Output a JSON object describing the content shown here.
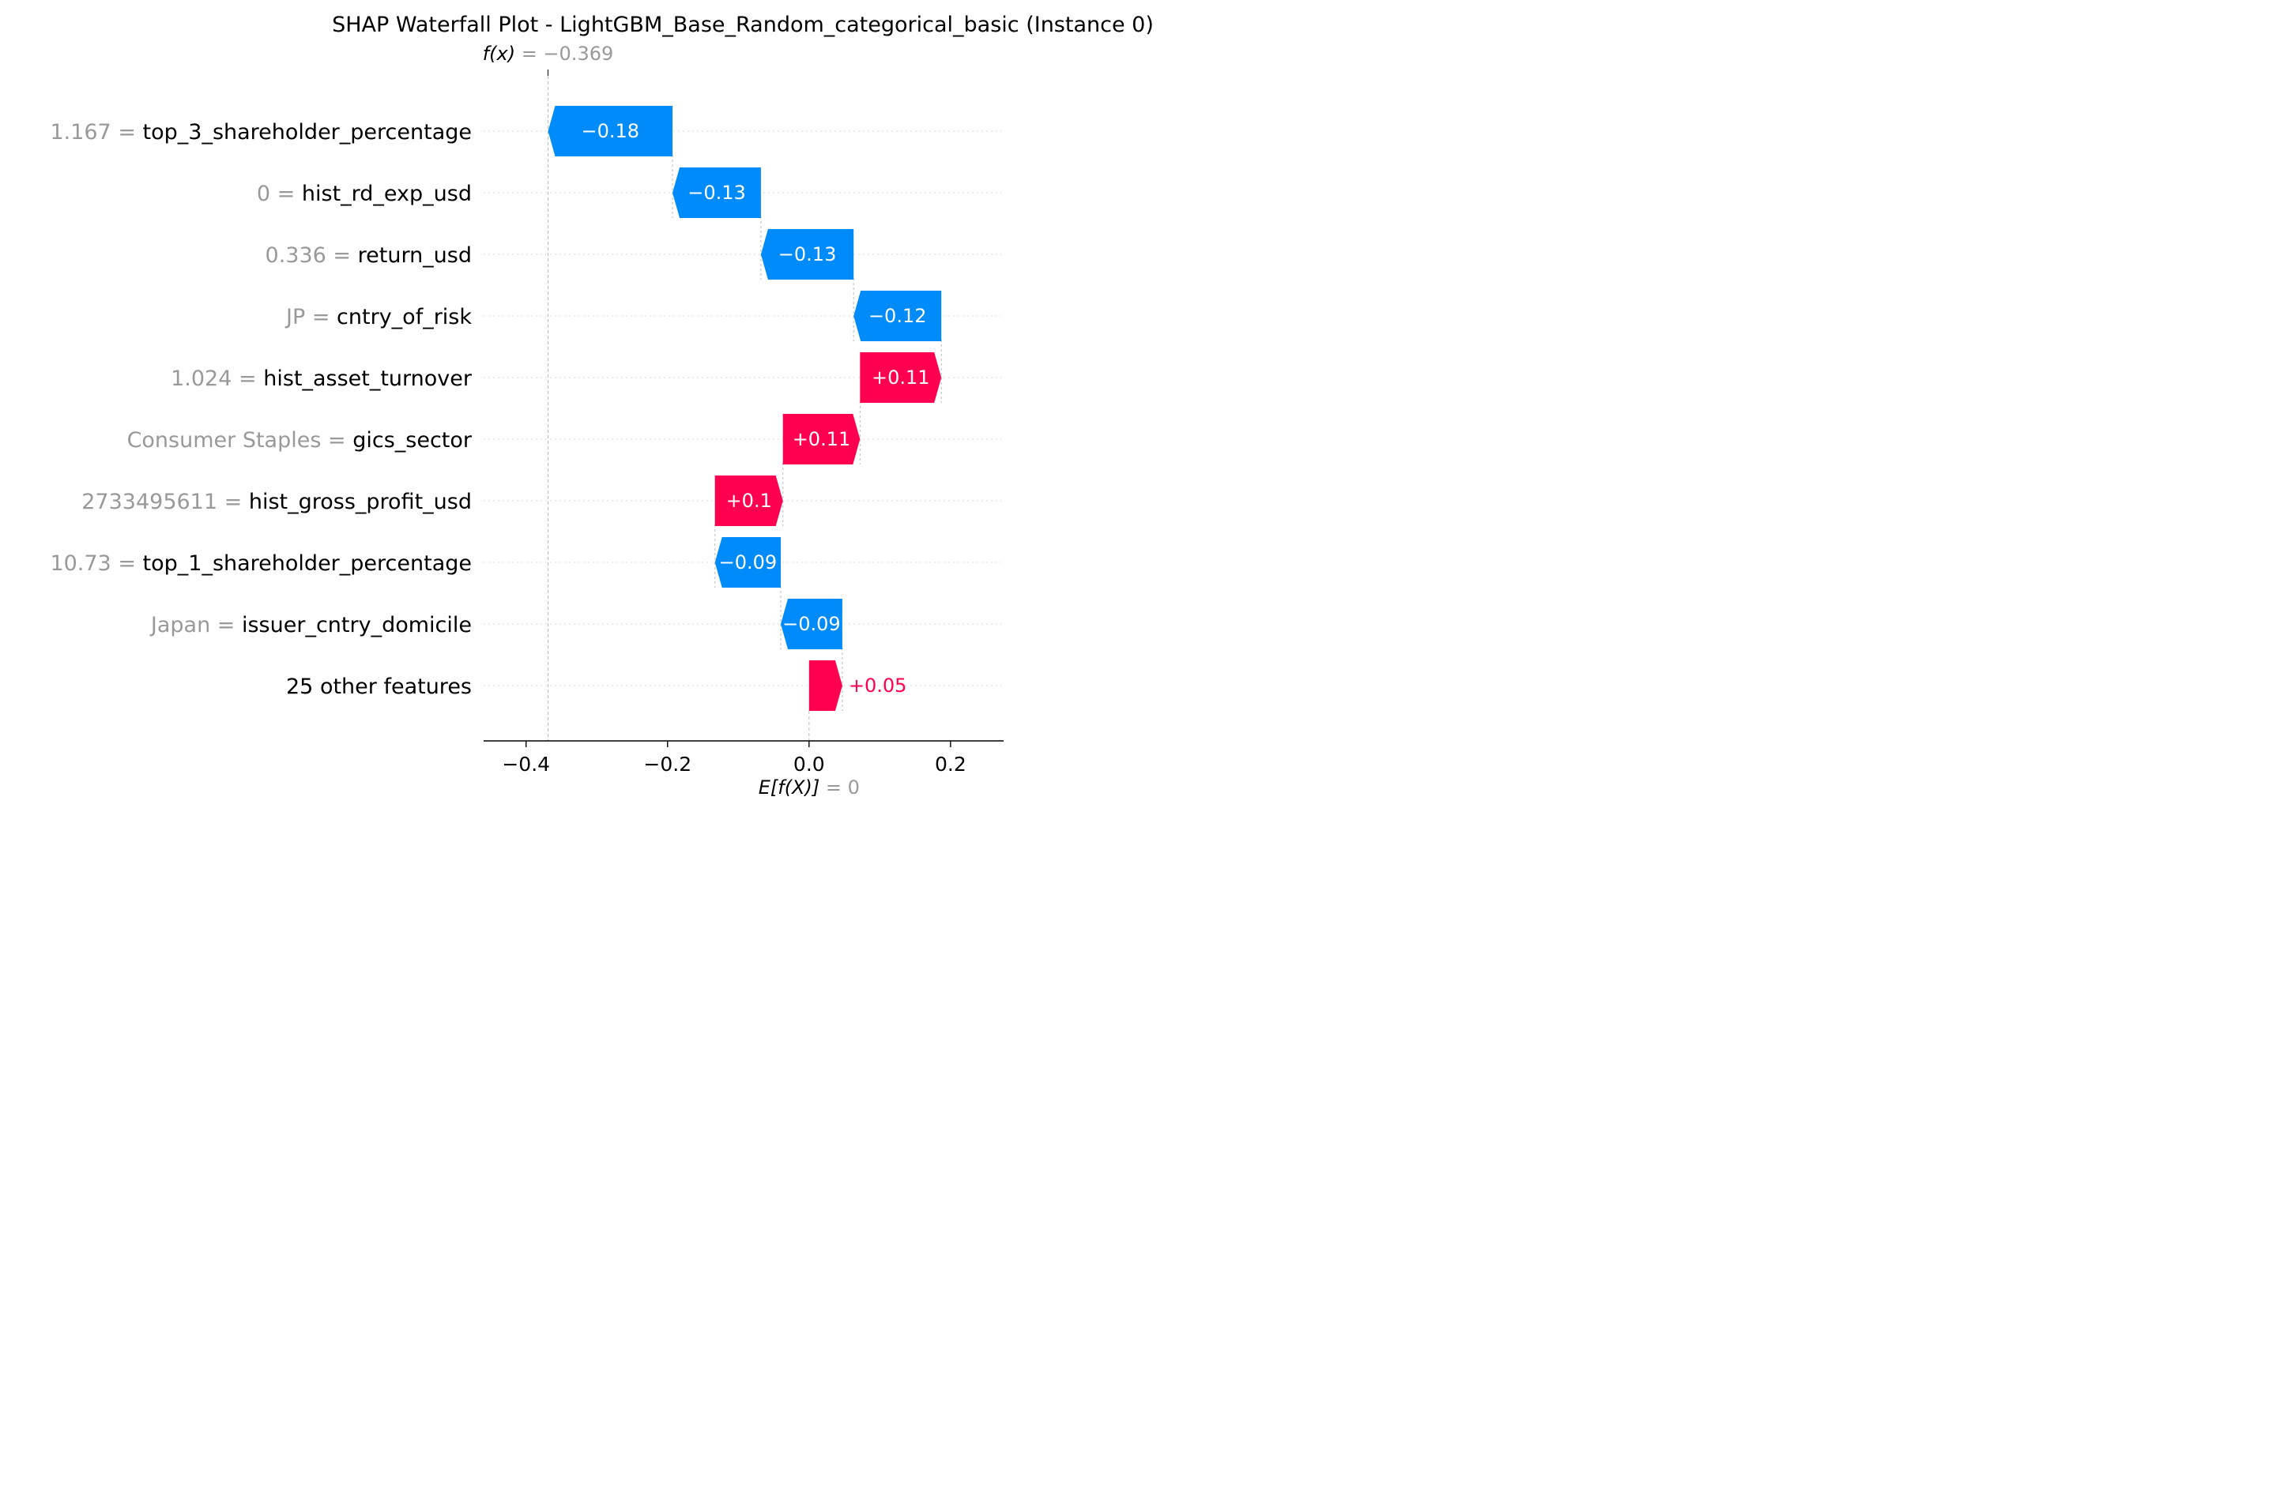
{
  "chart_data": {
    "type": "waterfall",
    "title": "SHAP Waterfall Plot - LightGBM_Base_Random_categorical_basic (Instance 0)",
    "fx": {
      "label_main": "f(x)",
      "label_eq": " = −0.369",
      "value": -0.369
    },
    "base": {
      "label_main": "E[f(X)]",
      "label_eq": " = 0",
      "value": 0
    },
    "xlim": [
      -0.46,
      0.275
    ],
    "xticks": [
      {
        "value": -0.4,
        "label": "−0.4"
      },
      {
        "value": -0.2,
        "label": "−0.2"
      },
      {
        "value": 0.0,
        "label": "0.0"
      },
      {
        "value": 0.2,
        "label": "0.2"
      }
    ],
    "features": [
      {
        "value_label": "1.167",
        "name": "top_3_shareholder_percentage",
        "start": -0.193,
        "end": -0.369,
        "shap_label": "−0.18",
        "sign": "neg"
      },
      {
        "value_label": "0",
        "name": "hist_rd_exp_usd",
        "start": -0.068,
        "end": -0.193,
        "shap_label": "−0.13",
        "sign": "neg"
      },
      {
        "value_label": "0.336",
        "name": "return_usd",
        "start": 0.063,
        "end": -0.068,
        "shap_label": "−0.13",
        "sign": "neg"
      },
      {
        "value_label": "JP",
        "name": "cntry_of_risk",
        "start": 0.187,
        "end": 0.063,
        "shap_label": "−0.12",
        "sign": "neg"
      },
      {
        "value_label": "1.024",
        "name": "hist_asset_turnover",
        "start": 0.072,
        "end": 0.187,
        "shap_label": "+0.11",
        "sign": "pos"
      },
      {
        "value_label": "Consumer Staples",
        "name": "gics_sector",
        "start": -0.037,
        "end": 0.072,
        "shap_label": "+0.11",
        "sign": "pos"
      },
      {
        "value_label": "2733495611",
        "name": "hist_gross_profit_usd",
        "start": -0.133,
        "end": -0.037,
        "shap_label": "+0.1",
        "sign": "pos"
      },
      {
        "value_label": "10.73",
        "name": "top_1_shareholder_percentage",
        "start": -0.04,
        "end": -0.133,
        "shap_label": "−0.09",
        "sign": "neg"
      },
      {
        "value_label": "Japan",
        "name": "issuer_cntry_domicile",
        "start": 0.047,
        "end": -0.04,
        "shap_label": "−0.09",
        "sign": "neg"
      },
      {
        "value_label": "",
        "name": "25 other features",
        "start": 0.0,
        "end": 0.047,
        "shap_label": "+0.05",
        "sign": "pos"
      }
    ],
    "colors": {
      "positive": "#ff0051",
      "negative": "#008bfb",
      "text_gray": "#999999",
      "axis": "#000000"
    }
  }
}
